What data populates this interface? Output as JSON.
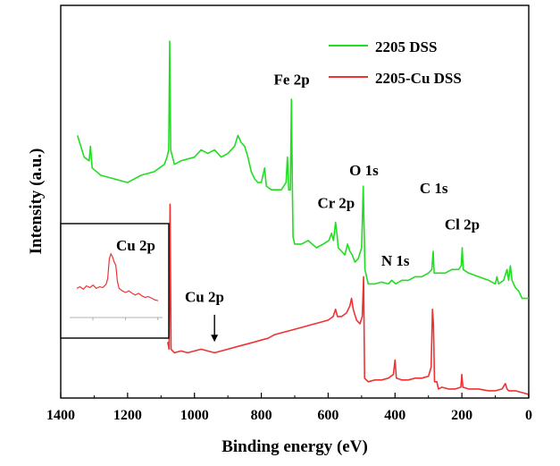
{
  "chart_data": {
    "type": "line",
    "xlabel": "Binding energy (eV)",
    "ylabel": "Intensity (a.u.)",
    "xlim": [
      1400,
      0
    ],
    "x_reversed": true,
    "x_ticks": [
      1400,
      1200,
      1000,
      800,
      600,
      400,
      200,
      0
    ],
    "y_ticks_shown": false,
    "grid": false,
    "legend": {
      "placement": "top-right"
    },
    "series": [
      {
        "name": "2205 DSS",
        "color": "#22dd22",
        "points": [
          [
            1350,
            0.72
          ],
          [
            1330,
            0.66
          ],
          [
            1315,
            0.65
          ],
          [
            1311,
            0.69
          ],
          [
            1306,
            0.63
          ],
          [
            1280,
            0.61
          ],
          [
            1240,
            0.6
          ],
          [
            1200,
            0.59
          ],
          [
            1160,
            0.61
          ],
          [
            1120,
            0.62
          ],
          [
            1090,
            0.64
          ],
          [
            1082,
            0.66
          ],
          [
            1077,
            0.68
          ],
          [
            1074,
            0.98
          ],
          [
            1071,
            0.68
          ],
          [
            1060,
            0.64
          ],
          [
            1040,
            0.65
          ],
          [
            1000,
            0.66
          ],
          [
            980,
            0.68
          ],
          [
            960,
            0.67
          ],
          [
            940,
            0.68
          ],
          [
            920,
            0.66
          ],
          [
            900,
            0.67
          ],
          [
            880,
            0.69
          ],
          [
            870,
            0.72
          ],
          [
            860,
            0.7
          ],
          [
            850,
            0.69
          ],
          [
            840,
            0.66
          ],
          [
            830,
            0.62
          ],
          [
            820,
            0.6
          ],
          [
            810,
            0.59
          ],
          [
            800,
            0.59
          ],
          [
            790,
            0.63
          ],
          [
            785,
            0.58
          ],
          [
            770,
            0.57
          ],
          [
            740,
            0.57
          ],
          [
            726,
            0.59
          ],
          [
            722,
            0.66
          ],
          [
            718,
            0.57
          ],
          [
            713,
            0.57
          ],
          [
            710,
            0.82
          ],
          [
            707,
            0.57
          ],
          [
            705,
            0.44
          ],
          [
            700,
            0.42
          ],
          [
            680,
            0.42
          ],
          [
            660,
            0.43
          ],
          [
            648,
            0.42
          ],
          [
            635,
            0.41
          ],
          [
            615,
            0.42
          ],
          [
            598,
            0.43
          ],
          [
            590,
            0.45
          ],
          [
            584,
            0.43
          ],
          [
            578,
            0.48
          ],
          [
            574,
            0.45
          ],
          [
            570,
            0.41
          ],
          [
            560,
            0.4
          ],
          [
            550,
            0.39
          ],
          [
            542,
            0.42
          ],
          [
            535,
            0.4
          ],
          [
            528,
            0.39
          ],
          [
            520,
            0.37
          ],
          [
            510,
            0.38
          ],
          [
            500,
            0.41
          ],
          [
            495,
            0.58
          ],
          [
            490,
            0.35
          ],
          [
            480,
            0.31
          ],
          [
            460,
            0.31
          ],
          [
            440,
            0.315
          ],
          [
            420,
            0.31
          ],
          [
            410,
            0.32
          ],
          [
            398,
            0.31
          ],
          [
            380,
            0.32
          ],
          [
            360,
            0.32
          ],
          [
            340,
            0.33
          ],
          [
            320,
            0.33
          ],
          [
            300,
            0.34
          ],
          [
            290,
            0.35
          ],
          [
            286,
            0.4
          ],
          [
            283,
            0.34
          ],
          [
            270,
            0.34
          ],
          [
            250,
            0.34
          ],
          [
            230,
            0.35
          ],
          [
            210,
            0.35
          ],
          [
            202,
            0.36
          ],
          [
            199,
            0.41
          ],
          [
            196,
            0.35
          ],
          [
            180,
            0.34
          ],
          [
            150,
            0.33
          ],
          [
            120,
            0.32
          ],
          [
            100,
            0.31
          ],
          [
            95,
            0.33
          ],
          [
            90,
            0.31
          ],
          [
            75,
            0.32
          ],
          [
            65,
            0.35
          ],
          [
            60,
            0.32
          ],
          [
            55,
            0.36
          ],
          [
            50,
            0.32
          ],
          [
            40,
            0.3
          ],
          [
            30,
            0.29
          ],
          [
            20,
            0.27
          ],
          [
            10,
            0.27
          ],
          [
            0,
            0.27
          ]
        ]
      },
      {
        "name": "2205-Cu DSS",
        "color": "#ee3333",
        "points": [
          [
            1080,
            0.15
          ],
          [
            1076,
            0.13
          ],
          [
            1073,
            0.53
          ],
          [
            1070,
            0.13
          ],
          [
            1060,
            0.12
          ],
          [
            1040,
            0.125
          ],
          [
            1020,
            0.12
          ],
          [
            1000,
            0.125
          ],
          [
            980,
            0.13
          ],
          [
            960,
            0.125
          ],
          [
            940,
            0.12
          ],
          [
            920,
            0.125
          ],
          [
            900,
            0.13
          ],
          [
            880,
            0.135
          ],
          [
            860,
            0.14
          ],
          [
            840,
            0.145
          ],
          [
            820,
            0.15
          ],
          [
            800,
            0.155
          ],
          [
            780,
            0.16
          ],
          [
            760,
            0.17
          ],
          [
            740,
            0.175
          ],
          [
            720,
            0.18
          ],
          [
            700,
            0.185
          ],
          [
            680,
            0.19
          ],
          [
            660,
            0.195
          ],
          [
            640,
            0.2
          ],
          [
            620,
            0.205
          ],
          [
            600,
            0.21
          ],
          [
            585,
            0.22
          ],
          [
            578,
            0.24
          ],
          [
            572,
            0.22
          ],
          [
            560,
            0.22
          ],
          [
            545,
            0.23
          ],
          [
            535,
            0.25
          ],
          [
            530,
            0.27
          ],
          [
            525,
            0.24
          ],
          [
            515,
            0.21
          ],
          [
            505,
            0.2
          ],
          [
            498,
            0.22
          ],
          [
            494,
            0.33
          ],
          [
            491,
            0.05
          ],
          [
            480,
            0.04
          ],
          [
            460,
            0.045
          ],
          [
            440,
            0.045
          ],
          [
            420,
            0.05
          ],
          [
            405,
            0.06
          ],
          [
            400,
            0.1
          ],
          [
            396,
            0.05
          ],
          [
            380,
            0.045
          ],
          [
            360,
            0.045
          ],
          [
            340,
            0.05
          ],
          [
            320,
            0.05
          ],
          [
            300,
            0.055
          ],
          [
            292,
            0.08
          ],
          [
            288,
            0.24
          ],
          [
            285,
            0.2
          ],
          [
            282,
            0.04
          ],
          [
            275,
            0.04
          ],
          [
            270,
            0.02
          ],
          [
            260,
            0.025
          ],
          [
            240,
            0.02
          ],
          [
            220,
            0.02
          ],
          [
            203,
            0.025
          ],
          [
            200,
            0.06
          ],
          [
            197,
            0.025
          ],
          [
            180,
            0.02
          ],
          [
            150,
            0.02
          ],
          [
            120,
            0.015
          ],
          [
            100,
            0.015
          ],
          [
            80,
            0.02
          ],
          [
            70,
            0.035
          ],
          [
            65,
            0.02
          ],
          [
            60,
            0.015
          ],
          [
            40,
            0.015
          ],
          [
            20,
            0.01
          ],
          [
            0,
            0.005
          ]
        ]
      }
    ],
    "peak_labels": [
      {
        "text": "Fe 2p",
        "x": 709,
        "y": 0.86
      },
      {
        "text": "Cr 2p",
        "x": 576,
        "y": 0.52
      },
      {
        "text": "O 1s",
        "x": 493,
        "y": 0.61
      },
      {
        "text": "N 1s",
        "x": 399,
        "y": 0.36
      },
      {
        "text": "C 1s",
        "x": 284,
        "y": 0.56
      },
      {
        "text": "Cl 2p",
        "x": 199,
        "y": 0.46
      },
      {
        "text": "Cu 2p",
        "x": 970,
        "y": 0.26
      }
    ],
    "arrow_annotation": {
      "x": 940,
      "y_from": 0.225,
      "y_to": 0.15
    },
    "inset": {
      "label": "Cu 2p",
      "color": "#ee3333",
      "x_ticks_shown": false,
      "points": [
        [
          0.0,
          0.3
        ],
        [
          0.04,
          0.32
        ],
        [
          0.08,
          0.29
        ],
        [
          0.12,
          0.33
        ],
        [
          0.16,
          0.31
        ],
        [
          0.2,
          0.34
        ],
        [
          0.24,
          0.3
        ],
        [
          0.28,
          0.32
        ],
        [
          0.32,
          0.31
        ],
        [
          0.36,
          0.35
        ],
        [
          0.38,
          0.42
        ],
        [
          0.4,
          0.66
        ],
        [
          0.42,
          0.72
        ],
        [
          0.44,
          0.68
        ],
        [
          0.46,
          0.62
        ],
        [
          0.48,
          0.58
        ],
        [
          0.5,
          0.38
        ],
        [
          0.52,
          0.3
        ],
        [
          0.56,
          0.27
        ],
        [
          0.6,
          0.25
        ],
        [
          0.64,
          0.27
        ],
        [
          0.68,
          0.24
        ],
        [
          0.72,
          0.22
        ],
        [
          0.76,
          0.24
        ],
        [
          0.8,
          0.21
        ],
        [
          0.84,
          0.19
        ],
        [
          0.88,
          0.2
        ],
        [
          0.92,
          0.18
        ],
        [
          0.96,
          0.16
        ],
        [
          1.0,
          0.15
        ]
      ]
    }
  }
}
